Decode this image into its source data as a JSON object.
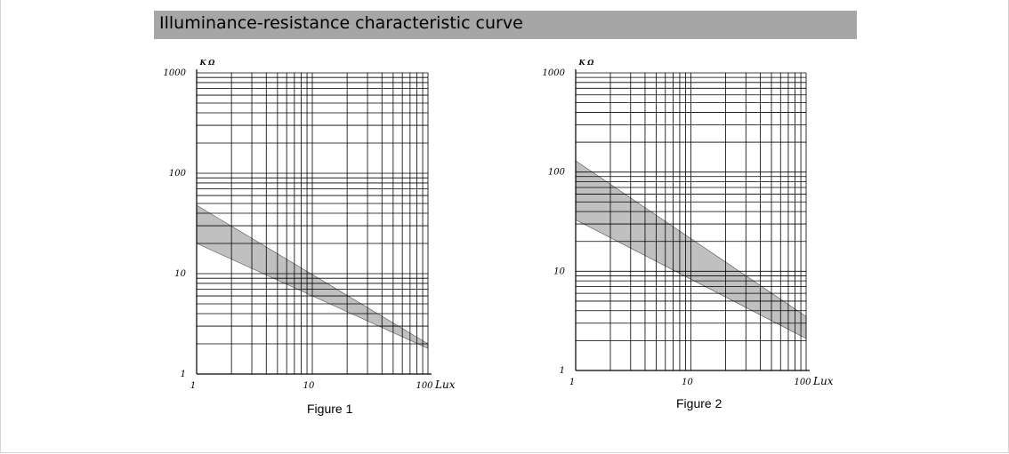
{
  "header": {
    "title": "Illuminance-resistance characteristic curve"
  },
  "colors": {
    "header_bg": "#a6a6a6",
    "band_fill": "#c0c0c0",
    "grid": "#000000"
  },
  "chart_data": [
    {
      "type": "area",
      "caption": "Figure 1",
      "xlabel": "Lux",
      "ylabel": "K Ω",
      "x_scale": "log",
      "y_scale": "log",
      "xlim": [
        1,
        100
      ],
      "ylim": [
        1,
        1000
      ],
      "x_ticks": [
        "1",
        "10",
        "100"
      ],
      "y_ticks": [
        "1",
        "10",
        "100",
        "1000"
      ],
      "grid": true,
      "band": {
        "x": [
          1,
          100
        ],
        "upper": [
          48,
          2
        ],
        "lower": [
          20,
          1.8
        ]
      }
    },
    {
      "type": "area",
      "caption": "Figure 2",
      "xlabel": "Lux",
      "ylabel": "K Ω",
      "x_scale": "log",
      "y_scale": "log",
      "xlim": [
        1,
        100
      ],
      "ylim": [
        1,
        1000
      ],
      "x_ticks": [
        "1",
        "10",
        "100"
      ],
      "y_ticks": [
        "1",
        "10",
        "100",
        "1000"
      ],
      "grid": true,
      "band": {
        "x": [
          1,
          100
        ],
        "upper": [
          130,
          3.5
        ],
        "lower": [
          33,
          2.1
        ]
      }
    }
  ]
}
